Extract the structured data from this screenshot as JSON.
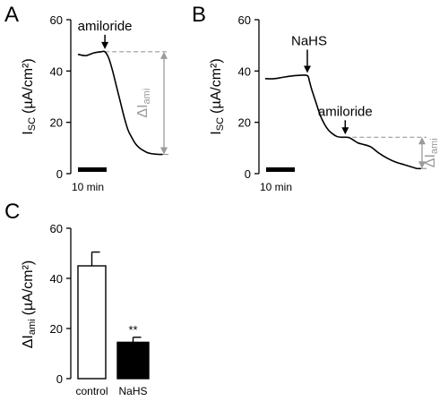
{
  "figure": {
    "panels": [
      {
        "letter": "A"
      },
      {
        "letter": "B"
      },
      {
        "letter": "C"
      }
    ]
  },
  "chart_data": [
    {
      "type": "line",
      "panel": "A",
      "ylabel_main": "I",
      "ylabel_sub": "SC",
      "ylabel_unit": "(µA/cm²)",
      "ylim": [
        0,
        60
      ],
      "yticks": [
        "0",
        "20",
        "40",
        "60"
      ],
      "x_scale_bar": "10 min",
      "x_minutes": [
        0,
        2,
        4,
        6,
        7,
        8,
        9,
        10,
        11,
        12,
        13,
        14,
        15,
        16,
        17,
        18,
        19,
        20,
        21,
        22
      ],
      "trace": [
        46.5,
        46,
        47,
        47.5,
        47.5,
        45,
        40,
        34,
        28,
        22,
        17,
        14,
        11.5,
        10,
        9,
        8.2,
        7.8,
        7.6,
        7.5,
        7.5
      ],
      "annotations": [
        {
          "text": "amiloride",
          "x_min": 7,
          "arrow": true
        }
      ],
      "delta": {
        "label_main": "ΔI",
        "label_sub": "ami",
        "from": 47.5,
        "to": 7.5
      }
    },
    {
      "type": "line",
      "panel": "B",
      "ylabel_main": "I",
      "ylabel_sub": "SC",
      "ylabel_unit": "(µA/cm²)",
      "ylim": [
        0,
        60
      ],
      "yticks": [
        "0",
        "20",
        "40",
        "60"
      ],
      "x_scale_bar": "10 min",
      "x_minutes": [
        0,
        2,
        4,
        6,
        8,
        10,
        10.5,
        11,
        12,
        13,
        14,
        15,
        16,
        17,
        18,
        19,
        20,
        21,
        22,
        23,
        25,
        27,
        29,
        31,
        33,
        35,
        36,
        37
      ],
      "trace": [
        37,
        37,
        37.5,
        38,
        38.3,
        38.2,
        36,
        33,
        28,
        23,
        19.5,
        17,
        15.5,
        14.5,
        14.2,
        14.2,
        14,
        13,
        12,
        11.5,
        10.5,
        8,
        6,
        4.5,
        3.5,
        2.5,
        2,
        2
      ],
      "annotations": [
        {
          "text": "NaHS",
          "x_min": 10,
          "arrow": true
        },
        {
          "text": "amiloride",
          "x_min": 19,
          "arrow": true
        }
      ],
      "delta": {
        "label_main": "ΔI",
        "label_sub": "ami",
        "from": 14.2,
        "to": 2
      }
    },
    {
      "type": "bar",
      "panel": "C",
      "ylabel_main": "ΔI",
      "ylabel_sub": "ami",
      "ylabel_unit": "(µA/cm²)",
      "ylim": [
        0,
        60
      ],
      "yticks": [
        "0",
        "20",
        "40",
        "60"
      ],
      "categories": [
        "control",
        "NaHS"
      ],
      "values": [
        45,
        14.5
      ],
      "errors": [
        5.5,
        2
      ],
      "colors": [
        "#ffffff",
        "#000000"
      ],
      "significance": [
        {
          "category": "NaHS",
          "text": "**"
        }
      ]
    }
  ]
}
